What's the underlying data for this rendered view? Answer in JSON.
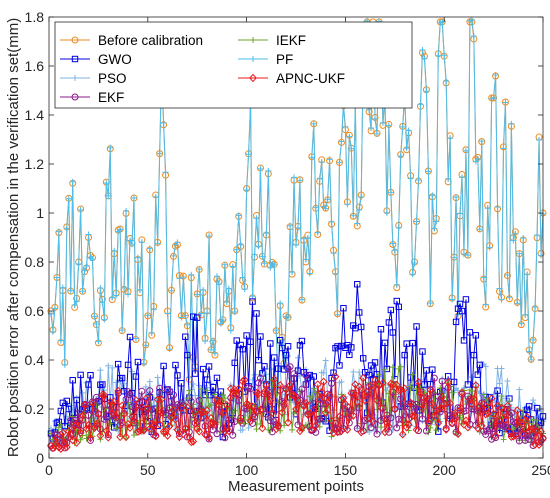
{
  "chart_data": {
    "type": "line",
    "title": "",
    "xlabel": "Measurement points",
    "ylabel": "Robot position error after compensation in the verification set(mm)",
    "xlim": [
      0,
      250
    ],
    "ylim": [
      0,
      1.8
    ],
    "xticks": [
      0,
      50,
      100,
      150,
      200,
      250
    ],
    "yticks": [
      0,
      0.2,
      0.4,
      0.6,
      0.8,
      1,
      1.2,
      1.4,
      1.6,
      1.8
    ],
    "xtick_labels": [
      "0",
      "50",
      "100",
      "150",
      "200",
      "250"
    ],
    "ytick_labels": [
      "0",
      "0.2",
      "0.4",
      "0.6",
      "0.8",
      "1",
      "1.2",
      "1.4",
      "1.6",
      "1.8"
    ],
    "grid": false,
    "legend_position": "top-left",
    "num_points": 250,
    "series": [
      {
        "name": "Before calibration",
        "color": "#EE8A1C",
        "marker": "circle",
        "key_points": [
          [
            1,
            0.6
          ],
          [
            5,
            0.92
          ],
          [
            8,
            0.39
          ],
          [
            10,
            1.06
          ],
          [
            15,
            0.8
          ],
          [
            20,
            0.9
          ],
          [
            25,
            0.47
          ],
          [
            30,
            1.07
          ],
          [
            35,
            0.93
          ],
          [
            40,
            0.68
          ],
          [
            45,
            0.81
          ],
          [
            50,
            0.58
          ],
          [
            55,
            0.88
          ],
          [
            58,
            1.36
          ],
          [
            60,
            0.6
          ],
          [
            65,
            0.87
          ],
          [
            70,
            0.54
          ],
          [
            75,
            0.67
          ],
          [
            80,
            0.6
          ],
          [
            85,
            0.73
          ],
          [
            90,
            0.63
          ],
          [
            95,
            0.85
          ],
          [
            100,
            1.1
          ],
          [
            105,
            0.99
          ],
          [
            110,
            0.91
          ],
          [
            115,
            0.52
          ],
          [
            120,
            0.58
          ],
          [
            125,
            0.88
          ],
          [
            130,
            0.8
          ],
          [
            133,
            1.23
          ],
          [
            140,
            1.02
          ],
          [
            145,
            0.76
          ],
          [
            150,
            1.34
          ],
          [
            155,
            1.45
          ],
          [
            160,
            1.55
          ],
          [
            165,
            1.39
          ],
          [
            170,
            1.48
          ],
          [
            175,
            0.84
          ],
          [
            180,
            1.48
          ],
          [
            185,
            0.8
          ],
          [
            190,
            1.64
          ],
          [
            193,
            0.63
          ],
          [
            197,
            1.65
          ],
          [
            200,
            1.64
          ],
          [
            205,
            0.82
          ],
          [
            210,
            0.84
          ],
          [
            215,
            1.71
          ],
          [
            220,
            0.73
          ],
          [
            225,
            1.47
          ],
          [
            228,
            0.68
          ],
          [
            230,
            1.27
          ],
          [
            235,
            0.9
          ],
          [
            240,
            0.89
          ],
          [
            245,
            0.48
          ],
          [
            248,
            1.31
          ],
          [
            250,
            1.0
          ]
        ]
      },
      {
        "name": "GWO",
        "color": "#0000E0",
        "marker": "square",
        "key_points": [
          [
            1,
            0.1
          ],
          [
            10,
            0.2
          ],
          [
            20,
            0.3
          ],
          [
            30,
            0.17
          ],
          [
            40,
            0.38
          ],
          [
            50,
            0.15
          ],
          [
            60,
            0.28
          ],
          [
            70,
            0.42
          ],
          [
            80,
            0.32
          ],
          [
            90,
            0.12
          ],
          [
            100,
            0.5
          ],
          [
            110,
            0.3
          ],
          [
            120,
            0.42
          ],
          [
            130,
            0.3
          ],
          [
            140,
            0.15
          ],
          [
            150,
            0.45
          ],
          [
            155,
            0.53
          ],
          [
            160,
            0.35
          ],
          [
            170,
            0.47
          ],
          [
            180,
            0.42
          ],
          [
            190,
            0.3
          ],
          [
            200,
            0.2
          ],
          [
            210,
            0.48
          ],
          [
            215,
            0.42
          ],
          [
            220,
            0.2
          ],
          [
            230,
            0.2
          ],
          [
            240,
            0.18
          ],
          [
            250,
            0.17
          ]
        ]
      },
      {
        "name": "PSO",
        "color": "#7FB3E6",
        "marker": "plus",
        "key_points": [
          [
            1,
            0.12
          ],
          [
            25,
            0.25
          ],
          [
            50,
            0.22
          ],
          [
            75,
            0.2
          ],
          [
            100,
            0.22
          ],
          [
            125,
            0.28
          ],
          [
            150,
            0.25
          ],
          [
            175,
            0.2
          ],
          [
            200,
            0.22
          ],
          [
            225,
            0.26
          ],
          [
            250,
            0.15
          ]
        ]
      },
      {
        "name": "EKF",
        "color": "#8B1A8B",
        "marker": "circle",
        "key_points": [
          [
            1,
            0.05
          ],
          [
            25,
            0.18
          ],
          [
            50,
            0.2
          ],
          [
            75,
            0.15
          ],
          [
            100,
            0.2
          ],
          [
            125,
            0.25
          ],
          [
            150,
            0.18
          ],
          [
            175,
            0.2
          ],
          [
            200,
            0.22
          ],
          [
            225,
            0.15
          ],
          [
            250,
            0.08
          ]
        ]
      },
      {
        "name": "IEKF",
        "color": "#6BA32D",
        "marker": "plus",
        "key_points": [
          [
            1,
            0.1
          ],
          [
            25,
            0.15
          ],
          [
            50,
            0.2
          ],
          [
            75,
            0.18
          ],
          [
            100,
            0.22
          ],
          [
            125,
            0.2
          ],
          [
            150,
            0.18
          ],
          [
            175,
            0.25
          ],
          [
            200,
            0.2
          ],
          [
            225,
            0.18
          ],
          [
            250,
            0.1
          ]
        ]
      },
      {
        "name": "PF",
        "color": "#4DBEEE",
        "marker": "plus",
        "key_points": [
          [
            1,
            0.6
          ],
          [
            5,
            0.92
          ],
          [
            8,
            0.39
          ],
          [
            10,
            1.06
          ],
          [
            15,
            0.8
          ],
          [
            20,
            0.9
          ],
          [
            25,
            0.47
          ],
          [
            30,
            1.07
          ],
          [
            35,
            0.93
          ],
          [
            40,
            0.68
          ],
          [
            45,
            0.81
          ],
          [
            50,
            0.58
          ],
          [
            55,
            0.88
          ],
          [
            58,
            1.36
          ],
          [
            60,
            0.6
          ],
          [
            65,
            0.87
          ],
          [
            70,
            0.54
          ],
          [
            75,
            0.67
          ],
          [
            80,
            0.6
          ],
          [
            85,
            0.73
          ],
          [
            90,
            0.63
          ],
          [
            95,
            0.85
          ],
          [
            100,
            1.1
          ],
          [
            105,
            0.99
          ],
          [
            110,
            0.91
          ],
          [
            115,
            0.52
          ],
          [
            120,
            0.58
          ],
          [
            125,
            0.88
          ],
          [
            130,
            0.8
          ],
          [
            133,
            1.23
          ],
          [
            140,
            1.02
          ],
          [
            145,
            0.76
          ],
          [
            150,
            1.34
          ],
          [
            155,
            1.45
          ],
          [
            160,
            1.55
          ],
          [
            165,
            1.39
          ],
          [
            170,
            1.48
          ],
          [
            175,
            0.84
          ],
          [
            180,
            1.48
          ],
          [
            185,
            0.8
          ],
          [
            190,
            1.64
          ],
          [
            193,
            0.63
          ],
          [
            197,
            1.65
          ],
          [
            200,
            1.64
          ],
          [
            205,
            0.82
          ],
          [
            210,
            0.84
          ],
          [
            215,
            1.71
          ],
          [
            220,
            0.73
          ],
          [
            225,
            1.47
          ],
          [
            228,
            0.68
          ],
          [
            230,
            1.27
          ],
          [
            235,
            0.9
          ],
          [
            240,
            0.89
          ],
          [
            245,
            0.48
          ],
          [
            248,
            1.31
          ],
          [
            250,
            1.0
          ]
        ]
      },
      {
        "name": "APNC-UKF",
        "color": "#E81A1A",
        "marker": "diamond",
        "key_points": [
          [
            1,
            0.05
          ],
          [
            25,
            0.18
          ],
          [
            50,
            0.2
          ],
          [
            75,
            0.12
          ],
          [
            100,
            0.22
          ],
          [
            125,
            0.2
          ],
          [
            150,
            0.22
          ],
          [
            175,
            0.2
          ],
          [
            200,
            0.22
          ],
          [
            225,
            0.18
          ],
          [
            250,
            0.08
          ]
        ]
      }
    ]
  }
}
